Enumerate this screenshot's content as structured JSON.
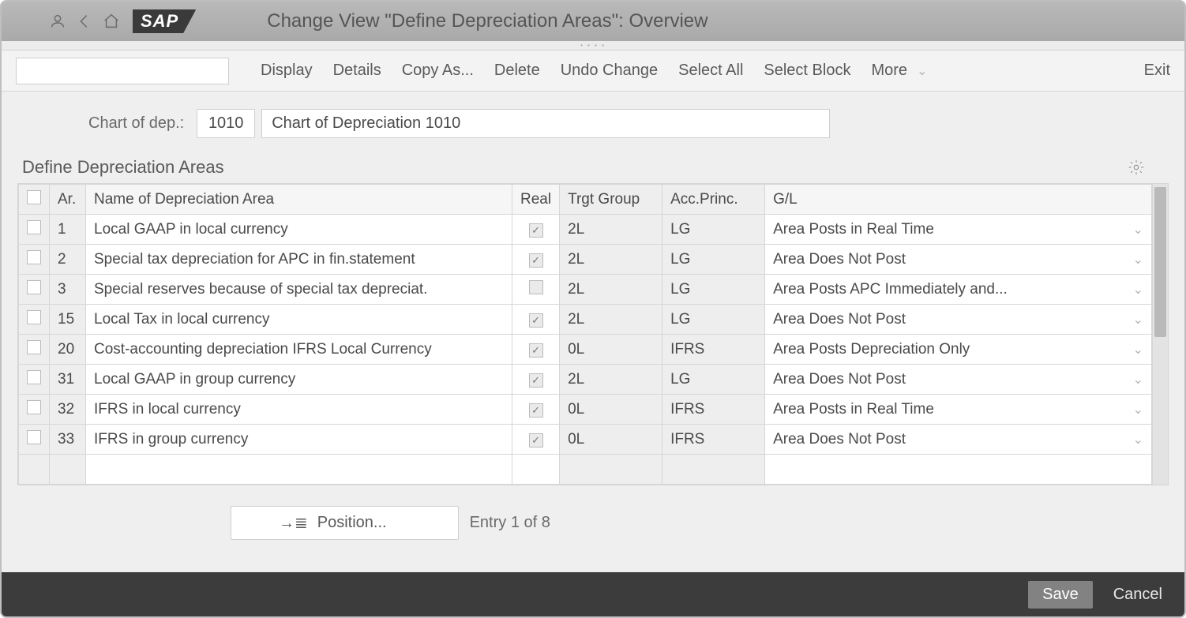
{
  "header": {
    "logo_text": "SAP",
    "title": "Change View \"Define Depreciation Areas\": Overview"
  },
  "colors": {
    "header_bg_top": "#b9b9b9",
    "header_bg_bot": "#a9a9a9",
    "panel_bg": "#efefef",
    "border": "#d6d6d6",
    "footer_bg": "#3c3c3c",
    "save_btn_bg": "#828282",
    "scrollbar_thumb": "#b9b9b9"
  },
  "toolbar": {
    "display": "Display",
    "details": "Details",
    "copy_as": "Copy As...",
    "delete": "Delete",
    "undo_change": "Undo Change",
    "select_all": "Select All",
    "select_block": "Select Block",
    "more": "More",
    "exit": "Exit"
  },
  "form": {
    "chart_label": "Chart of dep.:",
    "chart_code": "1010",
    "chart_desc": "Chart of Depreciation 1010"
  },
  "section": {
    "title": "Define Depreciation Areas"
  },
  "table": {
    "columns": {
      "ar": "Ar.",
      "name": "Name of Depreciation Area",
      "real": "Real",
      "trgt": "Trgt Group",
      "acc": "Acc.Princ.",
      "gl": "G/L"
    },
    "rows": [
      {
        "ar": "1",
        "name": "Local GAAP in local currency",
        "real": true,
        "trgt": "2L",
        "acc": "LG",
        "gl": "Area Posts in Real Time"
      },
      {
        "ar": "2",
        "name": "Special tax depreciation for APC in fin.statement",
        "real": true,
        "trgt": "2L",
        "acc": "LG",
        "gl": "Area Does Not Post"
      },
      {
        "ar": "3",
        "name": "Special reserves because of special tax depreciat.",
        "real": false,
        "trgt": "2L",
        "acc": "LG",
        "gl": "Area Posts APC Immediately and..."
      },
      {
        "ar": "15",
        "name": "Local Tax in local currency",
        "real": true,
        "trgt": "2L",
        "acc": "LG",
        "gl": "Area Does Not Post"
      },
      {
        "ar": "20",
        "name": "Cost-accounting depreciation IFRS Local Currency",
        "real": true,
        "trgt": "0L",
        "acc": "IFRS",
        "gl": "Area Posts Depreciation Only"
      },
      {
        "ar": "31",
        "name": "Local GAAP in group currency",
        "real": true,
        "trgt": "2L",
        "acc": "LG",
        "gl": "Area Does Not Post"
      },
      {
        "ar": "32",
        "name": "IFRS in local currency",
        "real": true,
        "trgt": "0L",
        "acc": "IFRS",
        "gl": "Area Posts in Real Time"
      },
      {
        "ar": "33",
        "name": "IFRS in group currency",
        "real": true,
        "trgt": "0L",
        "acc": "IFRS",
        "gl": "Area Does Not Post"
      }
    ]
  },
  "position": {
    "button": "Position...",
    "counter": "Entry 1 of 8"
  },
  "footer": {
    "save": "Save",
    "cancel": "Cancel"
  }
}
